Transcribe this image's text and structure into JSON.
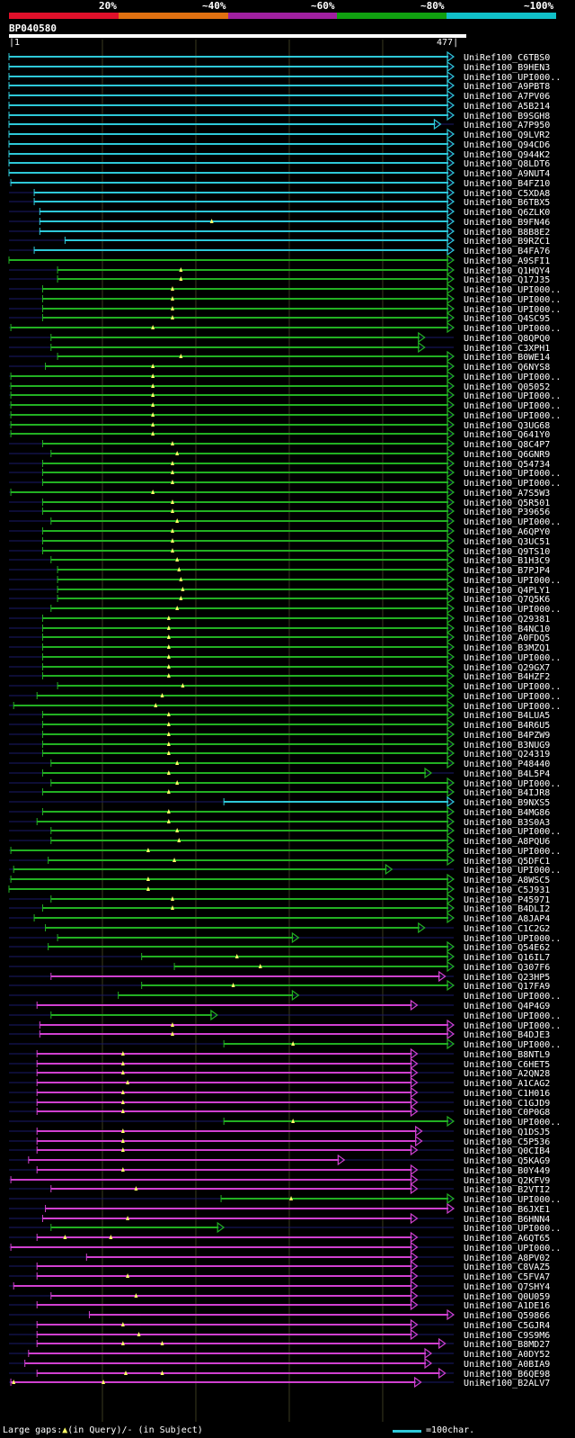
{
  "identity_scale": {
    "labels": [
      "20%",
      "~40%",
      "~60%",
      "~80%",
      "~100%"
    ],
    "colors": [
      "#e0102a",
      "#e07010",
      "#a020a0",
      "#10a010",
      "#10c0c8"
    ]
  },
  "query": {
    "name": "BP040580",
    "start": "1",
    "end": "477",
    "length": 477
  },
  "bar_colors": {
    "cyan": "#2ec8d8",
    "green": "#22b022",
    "magenta": "#d040d0",
    "tick": "#ffff66",
    "line": "#1a1a6a"
  },
  "hits": [
    {
      "name": "UniRef100_C6TBS0",
      "color": "cyan",
      "start": 1,
      "end": 477,
      "tri": []
    },
    {
      "name": "UniRef100_B9HEN3",
      "color": "cyan",
      "start": 1,
      "end": 477,
      "tri": []
    },
    {
      "name": "UniRef100_UPI000..",
      "color": "cyan",
      "start": 1,
      "end": 477,
      "tri": []
    },
    {
      "name": "UniRef100_A9PBT8",
      "color": "cyan",
      "start": 1,
      "end": 477,
      "tri": []
    },
    {
      "name": "UniRef100_A7PV06",
      "color": "cyan",
      "start": 1,
      "end": 477,
      "tri": []
    },
    {
      "name": "UniRef100_A5B214",
      "color": "cyan",
      "start": 1,
      "end": 477,
      "tri": []
    },
    {
      "name": "UniRef100_B9SGH8",
      "color": "cyan",
      "start": 1,
      "end": 477,
      "tri": []
    },
    {
      "name": "UniRef100_A7P950",
      "color": "cyan",
      "start": 1,
      "end": 463,
      "tri": []
    },
    {
      "name": "UniRef100_Q9LVR2",
      "color": "cyan",
      "start": 1,
      "end": 477,
      "tri": []
    },
    {
      "name": "UniRef100_Q94CD6",
      "color": "cyan",
      "start": 1,
      "end": 477,
      "tri": []
    },
    {
      "name": "UniRef100_Q944K2",
      "color": "cyan",
      "start": 1,
      "end": 477,
      "tri": []
    },
    {
      "name": "UniRef100_Q8LDT6",
      "color": "cyan",
      "start": 1,
      "end": 477,
      "tri": []
    },
    {
      "name": "UniRef100_A9NUT4",
      "color": "cyan",
      "start": 1,
      "end": 477,
      "tri": []
    },
    {
      "name": "UniRef100_B4FZ10",
      "color": "cyan",
      "start": 3,
      "end": 477,
      "tri": []
    },
    {
      "name": "UniRef100_C5XDA8",
      "color": "cyan",
      "start": 28,
      "end": 477,
      "tri": []
    },
    {
      "name": "UniRef100_B6TBX5",
      "color": "cyan",
      "start": 28,
      "end": 477,
      "tri": []
    },
    {
      "name": "UniRef100_Q6ZLK0",
      "color": "cyan",
      "start": 34,
      "end": 477,
      "tri": []
    },
    {
      "name": "UniRef100_B9FN46",
      "color": "cyan",
      "start": 34,
      "end": 477,
      "tri": [
        218
      ]
    },
    {
      "name": "UniRef100_B8B8E2",
      "color": "cyan",
      "start": 34,
      "end": 477,
      "tri": []
    },
    {
      "name": "UniRef100_B9RZC1",
      "color": "cyan",
      "start": 61,
      "end": 477,
      "tri": []
    },
    {
      "name": "UniRef100_B4FA76",
      "color": "cyan",
      "start": 28,
      "end": 477,
      "tri": []
    },
    {
      "name": "UniRef100_A9SFI1",
      "color": "green",
      "start": 1,
      "end": 477,
      "tri": []
    },
    {
      "name": "UniRef100_Q1HQY4",
      "color": "green",
      "start": 53,
      "end": 477,
      "tri": [
        185
      ]
    },
    {
      "name": "UniRef100_Q17J35",
      "color": "green",
      "start": 53,
      "end": 477,
      "tri": [
        185
      ]
    },
    {
      "name": "UniRef100_UPI000..",
      "color": "green",
      "start": 37,
      "end": 477,
      "tri": [
        176
      ]
    },
    {
      "name": "UniRef100_UPI000..",
      "color": "green",
      "start": 37,
      "end": 477,
      "tri": [
        176
      ]
    },
    {
      "name": "UniRef100_UPI000..",
      "color": "green",
      "start": 37,
      "end": 477,
      "tri": [
        176
      ]
    },
    {
      "name": "UniRef100_Q4SC95",
      "color": "green",
      "start": 37,
      "end": 477,
      "tri": [
        176
      ]
    },
    {
      "name": "UniRef100_UPI000..",
      "color": "green",
      "start": 3,
      "end": 477,
      "tri": [
        155
      ]
    },
    {
      "name": "UniRef100_Q8QPQ0",
      "color": "green",
      "start": 46,
      "end": 446,
      "tri": []
    },
    {
      "name": "UniRef100_C3XPH1",
      "color": "green",
      "start": 46,
      "end": 446,
      "tri": []
    },
    {
      "name": "UniRef100_B0WE14",
      "color": "green",
      "start": 53,
      "end": 477,
      "tri": [
        185
      ]
    },
    {
      "name": "UniRef100_Q6NYS8",
      "color": "green",
      "start": 40,
      "end": 477,
      "tri": [
        155
      ]
    },
    {
      "name": "UniRef100_UPI000..",
      "color": "green",
      "start": 3,
      "end": 477,
      "tri": [
        155
      ]
    },
    {
      "name": "UniRef100_Q05052",
      "color": "green",
      "start": 3,
      "end": 477,
      "tri": [
        155
      ]
    },
    {
      "name": "UniRef100_UPI000..",
      "color": "green",
      "start": 3,
      "end": 477,
      "tri": [
        155
      ]
    },
    {
      "name": "UniRef100_UPI000..",
      "color": "green",
      "start": 3,
      "end": 477,
      "tri": [
        155
      ]
    },
    {
      "name": "UniRef100_UPI000..",
      "color": "green",
      "start": 3,
      "end": 477,
      "tri": [
        155
      ]
    },
    {
      "name": "UniRef100_Q3UG68",
      "color": "green",
      "start": 3,
      "end": 477,
      "tri": [
        155
      ]
    },
    {
      "name": "UniRef100_Q641Y0",
      "color": "green",
      "start": 3,
      "end": 477,
      "tri": [
        155
      ]
    },
    {
      "name": "UniRef100_Q8C4P7",
      "color": "green",
      "start": 37,
      "end": 477,
      "tri": [
        176
      ]
    },
    {
      "name": "UniRef100_Q6GNR9",
      "color": "green",
      "start": 46,
      "end": 477,
      "tri": [
        181
      ]
    },
    {
      "name": "UniRef100_Q54734",
      "color": "green",
      "start": 37,
      "end": 477,
      "tri": [
        176
      ]
    },
    {
      "name": "UniRef100_UPI000..",
      "color": "green",
      "start": 37,
      "end": 477,
      "tri": [
        176
      ]
    },
    {
      "name": "UniRef100_UPI000..",
      "color": "green",
      "start": 37,
      "end": 477,
      "tri": [
        176
      ]
    },
    {
      "name": "UniRef100_A7S5W3",
      "color": "green",
      "start": 3,
      "end": 477,
      "tri": [
        155
      ]
    },
    {
      "name": "UniRef100_Q5R501",
      "color": "green",
      "start": 37,
      "end": 477,
      "tri": [
        176
      ]
    },
    {
      "name": "UniRef100_P39656",
      "color": "green",
      "start": 37,
      "end": 477,
      "tri": [
        176
      ]
    },
    {
      "name": "UniRef100_UPI000..",
      "color": "green",
      "start": 46,
      "end": 477,
      "tri": [
        181
      ]
    },
    {
      "name": "UniRef100_A6QPY0",
      "color": "green",
      "start": 37,
      "end": 477,
      "tri": [
        176
      ]
    },
    {
      "name": "UniRef100_Q3UC51",
      "color": "green",
      "start": 37,
      "end": 477,
      "tri": [
        176
      ]
    },
    {
      "name": "UniRef100_Q9TS10",
      "color": "green",
      "start": 37,
      "end": 477,
      "tri": [
        176
      ]
    },
    {
      "name": "UniRef100_B1H3C9",
      "color": "green",
      "start": 46,
      "end": 477,
      "tri": [
        181
      ]
    },
    {
      "name": "UniRef100_B7PJP4",
      "color": "green",
      "start": 53,
      "end": 477,
      "tri": [
        183
      ]
    },
    {
      "name": "UniRef100_UPI000..",
      "color": "green",
      "start": 53,
      "end": 477,
      "tri": [
        185
      ]
    },
    {
      "name": "UniRef100_Q4PLY1",
      "color": "green",
      "start": 53,
      "end": 477,
      "tri": [
        187
      ]
    },
    {
      "name": "UniRef100_Q7Q5K6",
      "color": "green",
      "start": 53,
      "end": 477,
      "tri": [
        185
      ]
    },
    {
      "name": "UniRef100_UPI000..",
      "color": "green",
      "start": 46,
      "end": 477,
      "tri": [
        181
      ]
    },
    {
      "name": "UniRef100_Q29381",
      "color": "green",
      "start": 37,
      "end": 477,
      "tri": [
        172
      ]
    },
    {
      "name": "UniRef100_B4NC10",
      "color": "green",
      "start": 37,
      "end": 477,
      "tri": [
        172
      ]
    },
    {
      "name": "UniRef100_A0FDQ5",
      "color": "green",
      "start": 37,
      "end": 477,
      "tri": [
        172
      ]
    },
    {
      "name": "UniRef100_B3MZQ1",
      "color": "green",
      "start": 37,
      "end": 477,
      "tri": [
        172
      ]
    },
    {
      "name": "UniRef100_UPI000..",
      "color": "green",
      "start": 37,
      "end": 477,
      "tri": [
        172
      ]
    },
    {
      "name": "UniRef100_Q29GX7",
      "color": "green",
      "start": 37,
      "end": 477,
      "tri": [
        172
      ]
    },
    {
      "name": "UniRef100_B4HZF2",
      "color": "green",
      "start": 37,
      "end": 477,
      "tri": [
        172
      ]
    },
    {
      "name": "UniRef100_UPI000..",
      "color": "green",
      "start": 53,
      "end": 477,
      "tri": [
        187
      ]
    },
    {
      "name": "UniRef100_UPI000..",
      "color": "green",
      "start": 31,
      "end": 477,
      "tri": [
        165
      ]
    },
    {
      "name": "UniRef100_UPI000..",
      "color": "green",
      "start": 6,
      "end": 477,
      "tri": [
        158
      ]
    },
    {
      "name": "UniRef100_B4LUA5",
      "color": "green",
      "start": 37,
      "end": 477,
      "tri": [
        172
      ]
    },
    {
      "name": "UniRef100_B4R6U5",
      "color": "green",
      "start": 37,
      "end": 477,
      "tri": [
        172
      ]
    },
    {
      "name": "UniRef100_B4PZW9",
      "color": "green",
      "start": 37,
      "end": 477,
      "tri": [
        172
      ]
    },
    {
      "name": "UniRef100_B3NUG9",
      "color": "green",
      "start": 37,
      "end": 477,
      "tri": [
        172
      ]
    },
    {
      "name": "UniRef100_Q24319",
      "color": "green",
      "start": 37,
      "end": 477,
      "tri": [
        172
      ]
    },
    {
      "name": "UniRef100_P48440",
      "color": "green",
      "start": 46,
      "end": 477,
      "tri": [
        181
      ]
    },
    {
      "name": "UniRef100_B4L5P4",
      "color": "green",
      "start": 37,
      "end": 453,
      "tri": [
        172
      ]
    },
    {
      "name": "UniRef100_UPI000..",
      "color": "green",
      "start": 46,
      "end": 477,
      "tri": [
        181
      ]
    },
    {
      "name": "UniRef100_B4IJR8",
      "color": "green",
      "start": 37,
      "end": 477,
      "tri": [
        172
      ]
    },
    {
      "name": "UniRef100_B9NXS5",
      "color": "cyan",
      "start": 231,
      "end": 477,
      "tri": []
    },
    {
      "name": "UniRef100_B4MG86",
      "color": "green",
      "start": 37,
      "end": 477,
      "tri": [
        172
      ]
    },
    {
      "name": "UniRef100_B3S0A3",
      "color": "green",
      "start": 31,
      "end": 477,
      "tri": [
        172
      ]
    },
    {
      "name": "UniRef100_UPI000..",
      "color": "green",
      "start": 46,
      "end": 477,
      "tri": [
        181
      ]
    },
    {
      "name": "UniRef100_A8PQU6",
      "color": "green",
      "start": 46,
      "end": 477,
      "tri": [
        183
      ]
    },
    {
      "name": "UniRef100_UPI000..",
      "color": "green",
      "start": 3,
      "end": 477,
      "tri": [
        150
      ]
    },
    {
      "name": "UniRef100_Q5DFC1",
      "color": "green",
      "start": 43,
      "end": 477,
      "tri": [
        178
      ]
    },
    {
      "name": "UniRef100_UPI000..",
      "color": "green",
      "start": 6,
      "end": 411,
      "tri": []
    },
    {
      "name": "UniRef100_A8WSC5",
      "color": "green",
      "start": 3,
      "end": 477,
      "tri": [
        150
      ]
    },
    {
      "name": "UniRef100_C5J931",
      "color": "green",
      "start": 1,
      "end": 477,
      "tri": [
        150
      ]
    },
    {
      "name": "UniRef100_P45971",
      "color": "green",
      "start": 46,
      "end": 477,
      "tri": [
        176
      ]
    },
    {
      "name": "UniRef100_B4DLI2",
      "color": "green",
      "start": 37,
      "end": 477,
      "tri": [
        176
      ]
    },
    {
      "name": "UniRef100_A8JAP4",
      "color": "green",
      "start": 28,
      "end": 477,
      "tri": []
    },
    {
      "name": "UniRef100_C1C2G2",
      "color": "green",
      "start": 40,
      "end": 446,
      "tri": []
    },
    {
      "name": "UniRef100_UPI000..",
      "color": "green",
      "start": 53,
      "end": 311,
      "tri": []
    },
    {
      "name": "UniRef100_Q54E62",
      "color": "green",
      "start": 43,
      "end": 477,
      "tri": []
    },
    {
      "name": "UniRef100_Q16IL7",
      "color": "green",
      "start": 143,
      "end": 477,
      "tri": [
        245
      ]
    },
    {
      "name": "UniRef100_Q307F6",
      "color": "green",
      "start": 178,
      "end": 477,
      "tri": [
        270
      ]
    },
    {
      "name": "UniRef100_Q23HP5",
      "color": "magenta",
      "start": 46,
      "end": 468,
      "tri": []
    },
    {
      "name": "UniRef100_Q17FA9",
      "color": "green",
      "start": 143,
      "end": 477,
      "tri": [
        241
      ]
    },
    {
      "name": "UniRef100_UPI000..",
      "color": "green",
      "start": 118,
      "end": 311,
      "tri": []
    },
    {
      "name": "UniRef100_Q4P4G9",
      "color": "magenta",
      "start": 31,
      "end": 438,
      "tri": []
    },
    {
      "name": "UniRef100_UPI000..",
      "color": "green",
      "start": 46,
      "end": 224,
      "tri": []
    },
    {
      "name": "UniRef100_UPI000..",
      "color": "magenta",
      "start": 34,
      "end": 477,
      "tri": [
        176
      ]
    },
    {
      "name": "UniRef100_B4DJE3",
      "color": "magenta",
      "start": 34,
      "end": 477,
      "tri": [
        176
      ]
    },
    {
      "name": "UniRef100_UPI000..",
      "color": "green",
      "start": 231,
      "end": 477,
      "tri": [
        305
      ]
    },
    {
      "name": "UniRef100_B8NTL9",
      "color": "magenta",
      "start": 31,
      "end": 438,
      "tri": [
        123
      ]
    },
    {
      "name": "UniRef100_C6HET5",
      "color": "magenta",
      "start": 31,
      "end": 438,
      "tri": [
        123
      ]
    },
    {
      "name": "UniRef100_A2QN28",
      "color": "magenta",
      "start": 31,
      "end": 438,
      "tri": [
        123
      ]
    },
    {
      "name": "UniRef100_A1CAG2",
      "color": "magenta",
      "start": 31,
      "end": 438,
      "tri": [
        128
      ]
    },
    {
      "name": "UniRef100_C1H016",
      "color": "magenta",
      "start": 31,
      "end": 438,
      "tri": [
        123
      ]
    },
    {
      "name": "UniRef100_C1GJD9",
      "color": "magenta",
      "start": 31,
      "end": 438,
      "tri": [
        123
      ]
    },
    {
      "name": "UniRef100_C0P0G8",
      "color": "magenta",
      "start": 31,
      "end": 438,
      "tri": [
        123
      ]
    },
    {
      "name": "UniRef100_UPI000..",
      "color": "green",
      "start": 231,
      "end": 477,
      "tri": [
        305
      ]
    },
    {
      "name": "UniRef100_Q1DSJ5",
      "color": "magenta",
      "start": 31,
      "end": 443,
      "tri": [
        123
      ]
    },
    {
      "name": "UniRef100_C5P536",
      "color": "magenta",
      "start": 31,
      "end": 443,
      "tri": [
        123
      ]
    },
    {
      "name": "UniRef100_Q0CIB4",
      "color": "magenta",
      "start": 31,
      "end": 438,
      "tri": [
        123
      ]
    },
    {
      "name": "UniRef100_Q5KAG9",
      "color": "magenta",
      "start": 22,
      "end": 360,
      "tri": []
    },
    {
      "name": "UniRef100_B0Y449",
      "color": "magenta",
      "start": 31,
      "end": 438,
      "tri": [
        123
      ]
    },
    {
      "name": "UniRef100_Q2KFV9",
      "color": "magenta",
      "start": 3,
      "end": 438,
      "tri": []
    },
    {
      "name": "UniRef100_B2VTI2",
      "color": "magenta",
      "start": 46,
      "end": 438,
      "tri": [
        137
      ]
    },
    {
      "name": "UniRef100_UPI000..",
      "color": "green",
      "start": 228,
      "end": 477,
      "tri": [
        303
      ]
    },
    {
      "name": "UniRef100_B6JXE1",
      "color": "magenta",
      "start": 40,
      "end": 477,
      "tri": []
    },
    {
      "name": "UniRef100_B6HNN4",
      "color": "magenta",
      "start": 37,
      "end": 438,
      "tri": [
        128
      ]
    },
    {
      "name": "UniRef100_UPI000..",
      "color": "green",
      "start": 46,
      "end": 231,
      "tri": []
    },
    {
      "name": "UniRef100_A6QT65",
      "color": "magenta",
      "start": 31,
      "end": 438,
      "tri": [
        61,
        110
      ]
    },
    {
      "name": "UniRef100_UPI000..",
      "color": "magenta",
      "start": 3,
      "end": 438,
      "tri": []
    },
    {
      "name": "UniRef100_A8PV02",
      "color": "magenta",
      "start": 84,
      "end": 438,
      "tri": []
    },
    {
      "name": "UniRef100_C8VAZ5",
      "color": "magenta",
      "start": 31,
      "end": 438,
      "tri": []
    },
    {
      "name": "UniRef100_C5FVA7",
      "color": "magenta",
      "start": 31,
      "end": 438,
      "tri": [
        128
      ]
    },
    {
      "name": "UniRef100_Q7SHY4",
      "color": "magenta",
      "start": 6,
      "end": 438,
      "tri": []
    },
    {
      "name": "UniRef100_Q0U059",
      "color": "magenta",
      "start": 46,
      "end": 438,
      "tri": [
        137
      ]
    },
    {
      "name": "UniRef100_A1DE16",
      "color": "magenta",
      "start": 31,
      "end": 438,
      "tri": []
    },
    {
      "name": "UniRef100_Q59866",
      "color": "magenta",
      "start": 87,
      "end": 477,
      "tri": []
    },
    {
      "name": "UniRef100_C5GJR4",
      "color": "magenta",
      "start": 31,
      "end": 438,
      "tri": [
        123
      ]
    },
    {
      "name": "UniRef100_C9S9M6",
      "color": "magenta",
      "start": 31,
      "end": 438,
      "tri": [
        140
      ]
    },
    {
      "name": "UniRef100_B8MD27",
      "color": "magenta",
      "start": 31,
      "end": 468,
      "tri": [
        123,
        165
      ]
    },
    {
      "name": "UniRef100_A0DY52",
      "color": "magenta",
      "start": 22,
      "end": 453,
      "tri": []
    },
    {
      "name": "UniRef100_A0BIA9",
      "color": "magenta",
      "start": 18,
      "end": 453,
      "tri": []
    },
    {
      "name": "UniRef100_B6QE98",
      "color": "magenta",
      "start": 31,
      "end": 468,
      "tri": [
        126,
        165
      ]
    },
    {
      "name": "UniRef100_B2ALV7",
      "color": "magenta",
      "start": 3,
      "end": 442,
      "tri": [
        6,
        102
      ]
    }
  ],
  "footer": {
    "legend": "Large gaps:",
    "query_label": "(in Query)/",
    "subject_label": "- (in Subject)",
    "scale_label": "=100char."
  }
}
